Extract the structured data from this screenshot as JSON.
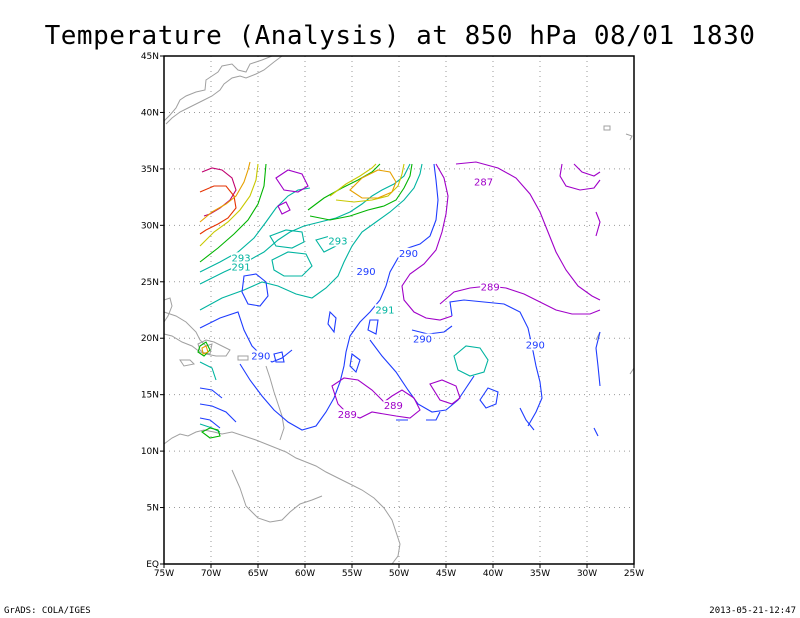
{
  "title": "Temperature (Analysis) at 850 hPa 08/01 1830",
  "footer_left": "GrADS: COLA/IGES",
  "footer_right": "2013-05-21-12:47",
  "lat_ticks": [
    {
      "lat": 45,
      "label": "45N"
    },
    {
      "lat": 40,
      "label": "40N"
    },
    {
      "lat": 35,
      "label": "35N"
    },
    {
      "lat": 30,
      "label": "30N"
    },
    {
      "lat": 25,
      "label": "25N"
    },
    {
      "lat": 20,
      "label": "20N"
    },
    {
      "lat": 15,
      "label": "15N"
    },
    {
      "lat": 10,
      "label": "10N"
    },
    {
      "lat": 5,
      "label": "5N"
    },
    {
      "lat": 0,
      "label": "EQ"
    }
  ],
  "lon_ticks": [
    {
      "lon": -75,
      "label": "75W"
    },
    {
      "lon": -70,
      "label": "70W"
    },
    {
      "lon": -65,
      "label": "65W"
    },
    {
      "lon": -60,
      "label": "60W"
    },
    {
      "lon": -55,
      "label": "55W"
    },
    {
      "lon": -50,
      "label": "50W"
    },
    {
      "lon": -45,
      "label": "45W"
    },
    {
      "lon": -40,
      "label": "40W"
    },
    {
      "lon": -35,
      "label": "35W"
    },
    {
      "lon": -30,
      "label": "30W"
    },
    {
      "lon": -25,
      "label": "25W"
    }
  ],
  "extent": {
    "lon_min": -75,
    "lon_max": -25,
    "lat_min": 0,
    "lat_max": 45
  },
  "contour_labels": [
    {
      "text": "287",
      "lon": -41.0,
      "lat": 33.6,
      "color": "#a000c8"
    },
    {
      "text": "293",
      "lon": -56.5,
      "lat": 28.4,
      "color": "#00b4a0"
    },
    {
      "text": "293",
      "lon": -66.8,
      "lat": 26.9,
      "color": "#00b4a0"
    },
    {
      "text": "291",
      "lon": -66.8,
      "lat": 26.1,
      "color": "#00b4a0"
    },
    {
      "text": "290",
      "lon": -49.0,
      "lat": 27.3,
      "color": "#1e3cff"
    },
    {
      "text": "290",
      "lon": -53.5,
      "lat": 25.7,
      "color": "#1e3cff"
    },
    {
      "text": "289",
      "lon": -40.3,
      "lat": 24.3,
      "color": "#a000c8"
    },
    {
      "text": "291",
      "lon": -51.5,
      "lat": 22.3,
      "color": "#00b4a0"
    },
    {
      "text": "290",
      "lon": -47.5,
      "lat": 19.7,
      "color": "#1e3cff"
    },
    {
      "text": "290",
      "lon": -35.5,
      "lat": 19.2,
      "color": "#1e3cff"
    },
    {
      "text": "290",
      "lon": -64.7,
      "lat": 18.2,
      "color": "#1e3cff"
    },
    {
      "text": "289",
      "lon": -50.6,
      "lat": 13.8,
      "color": "#a000c8"
    },
    {
      "text": "289",
      "lon": -55.5,
      "lat": 13.0,
      "color": "#a000c8"
    }
  ]
}
